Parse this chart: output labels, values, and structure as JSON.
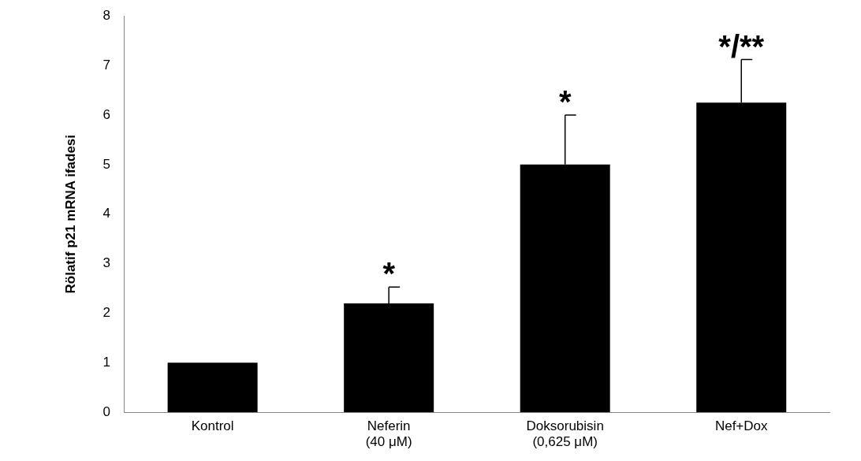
{
  "chart_data": {
    "type": "bar",
    "ylabel": "Rölatif p21 mRNA ifadesi",
    "categories": [
      "Kontrol",
      "Neferin\n(40 μM)",
      "Doksorubisin\n(0,625 μM)",
      "Nef+Dox"
    ],
    "values": [
      1.0,
      2.2,
      5.0,
      6.25
    ],
    "errors": [
      null,
      [
        2.2,
        2.53
      ],
      [
        5.0,
        6.0
      ],
      [
        6.25,
        7.12
      ]
    ],
    "color": "#000000",
    "ylim": [
      0,
      8
    ],
    "yticks": [
      0,
      1,
      2,
      3,
      4,
      5,
      6,
      7,
      8
    ],
    "grid": false,
    "legend": false,
    "annotations": [
      {
        "text": "*",
        "x": "Neferin\n(40 μM)",
        "y": 2.53
      },
      {
        "text": "*",
        "x": "Doksorubisin\n(0,625 μM)",
        "y": 6.0
      },
      {
        "text": "*/**",
        "x": "Nef+Dox",
        "y": 7.12
      }
    ]
  }
}
